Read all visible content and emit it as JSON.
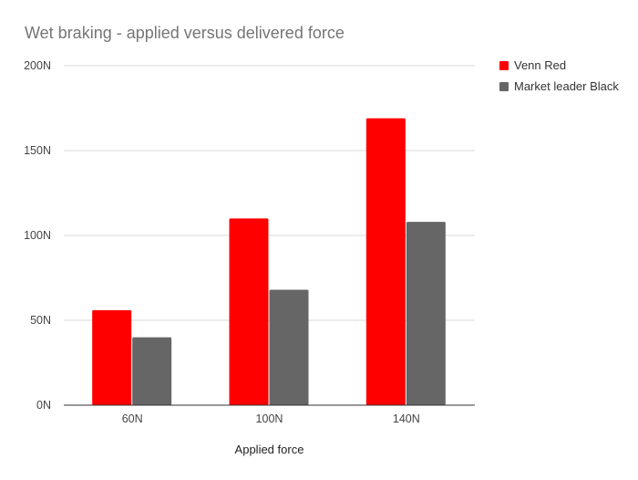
{
  "chart_data": {
    "type": "bar",
    "title": "Wet braking - applied versus delivered force",
    "xlabel": "Applied force",
    "ylabel": "",
    "categories": [
      "60N",
      "100N",
      "140N"
    ],
    "series": [
      {
        "name": "Venn Red",
        "color": "#ff0000",
        "values": [
          56,
          110,
          169
        ]
      },
      {
        "name": "Market leader Black",
        "color": "#666666",
        "values": [
          40,
          68,
          108
        ]
      }
    ],
    "ylim": [
      0,
      200
    ],
    "yticks": [
      0,
      50,
      100,
      150,
      200
    ],
    "ytick_labels": [
      "0N",
      "50N",
      "100N",
      "150N",
      "200N"
    ],
    "grid": true,
    "legend_position": "right"
  }
}
